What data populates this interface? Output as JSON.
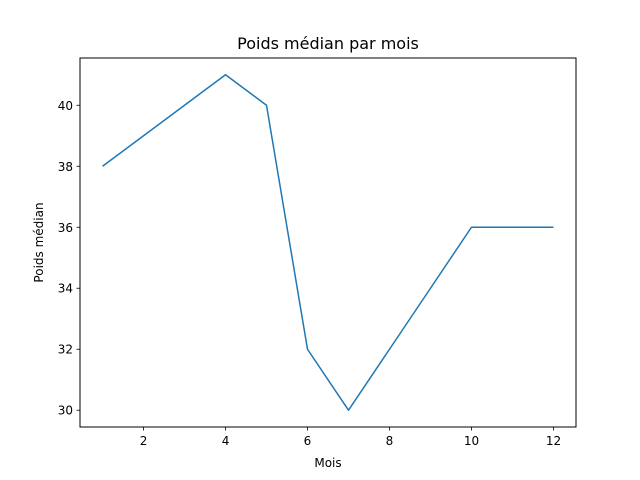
{
  "chart_data": {
    "type": "line",
    "title": "Poids médian par mois",
    "xlabel": "Mois",
    "ylabel": "Poids médian",
    "x": [
      1,
      2,
      3,
      4,
      5,
      6,
      7,
      8,
      9,
      10,
      11,
      12
    ],
    "series": [
      {
        "values": [
          38,
          39,
          40,
          41,
          40,
          32,
          30,
          32,
          34,
          36,
          36,
          36
        ],
        "color": "#1f77b4"
      }
    ],
    "xlim": [
      0.45,
      12.55
    ],
    "ylim": [
      29.45,
      41.55
    ],
    "xticks": [
      2,
      4,
      6,
      8,
      10,
      12
    ],
    "yticks": [
      30,
      32,
      34,
      36,
      38,
      40
    ],
    "grid": false,
    "legend": "none"
  }
}
